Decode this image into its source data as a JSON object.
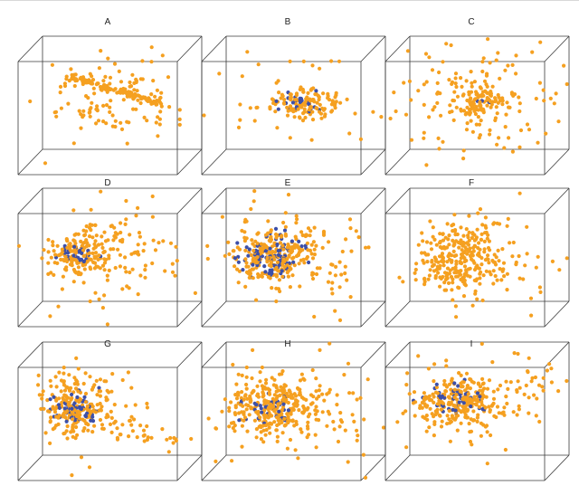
{
  "colors": {
    "orange": "#f5a020",
    "blue": "#3c4fa8",
    "edge": "#3a3a3a",
    "background": "#ffffff"
  },
  "chart_data": {
    "type": "scatter",
    "description": "3x3 grid of 3D scatter plots (point clouds in wireframe cubes), two series: orange and blue points",
    "panels": [
      {
        "label": "A",
        "row": 0,
        "col": 0,
        "clusters": [
          {
            "kind": "line",
            "from": [
              -0.55,
              0.55,
              -0.05
            ],
            "to": [
              0.6,
              0.05,
              0.0
            ],
            "n": 120,
            "spread": 0.03,
            "color": "orange"
          },
          {
            "kind": "blob",
            "center": [
              0.05,
              0.15,
              0.0
            ],
            "size": [
              0.45,
              0.35,
              0.45
            ],
            "n": 110,
            "color": "orange"
          }
        ]
      },
      {
        "label": "B",
        "row": 0,
        "col": 1,
        "clusters": [
          {
            "kind": "blob",
            "center": [
              0.15,
              0.05,
              -0.05
            ],
            "size": [
              0.25,
              0.12,
              0.1
            ],
            "n": 110,
            "color": "orange"
          },
          {
            "kind": "blob",
            "center": [
              0.1,
              0.05,
              -0.05
            ],
            "size": [
              0.15,
              0.08,
              0.08
            ],
            "n": 25,
            "color": "blue"
          },
          {
            "kind": "blob",
            "center": [
              0.0,
              0.1,
              0.1
            ],
            "size": [
              0.7,
              0.45,
              0.55
            ],
            "n": 45,
            "color": "orange"
          }
        ]
      },
      {
        "label": "C",
        "row": 0,
        "col": 2,
        "clusters": [
          {
            "kind": "blob",
            "center": [
              0.05,
              0.05,
              0.0
            ],
            "size": [
              0.2,
              0.15,
              0.2
            ],
            "n": 80,
            "color": "orange"
          },
          {
            "kind": "blob",
            "center": [
              0.0,
              0.1,
              0.0
            ],
            "size": [
              0.55,
              0.5,
              0.55
            ],
            "n": 140,
            "color": "orange"
          },
          {
            "kind": "blob",
            "center": [
              0.05,
              0.05,
              0.0
            ],
            "size": [
              0.05,
              0.05,
              0.05
            ],
            "n": 3,
            "color": "blue"
          }
        ]
      },
      {
        "label": "D",
        "row": 1,
        "col": 0,
        "clusters": [
          {
            "kind": "blob",
            "center": [
              -0.4,
              0.05,
              0.05
            ],
            "size": [
              0.2,
              0.18,
              0.2
            ],
            "n": 150,
            "color": "orange"
          },
          {
            "kind": "blob",
            "center": [
              -0.4,
              0.05,
              0.05
            ],
            "size": [
              0.13,
              0.1,
              0.12
            ],
            "n": 30,
            "color": "blue"
          },
          {
            "kind": "blob",
            "center": [
              0.05,
              0.05,
              0.0
            ],
            "size": [
              0.5,
              0.45,
              0.55
            ],
            "n": 110,
            "color": "orange"
          }
        ]
      },
      {
        "label": "E",
        "row": 1,
        "col": 1,
        "clusters": [
          {
            "kind": "blob",
            "center": [
              -0.25,
              0.0,
              0.05
            ],
            "size": [
              0.28,
              0.25,
              0.28
            ],
            "n": 220,
            "color": "orange"
          },
          {
            "kind": "blob",
            "center": [
              -0.25,
              0.0,
              0.05
            ],
            "size": [
              0.2,
              0.18,
              0.2
            ],
            "n": 90,
            "color": "blue"
          },
          {
            "kind": "blob",
            "center": [
              0.1,
              0.0,
              0.0
            ],
            "size": [
              0.55,
              0.5,
              0.55
            ],
            "n": 90,
            "color": "orange"
          }
        ]
      },
      {
        "label": "F",
        "row": 1,
        "col": 2,
        "clusters": [
          {
            "kind": "blob",
            "center": [
              -0.25,
              0.0,
              0.05
            ],
            "size": [
              0.25,
              0.3,
              0.25
            ],
            "n": 260,
            "color": "orange"
          },
          {
            "kind": "blob",
            "center": [
              0.2,
              -0.05,
              0.0
            ],
            "size": [
              0.45,
              0.45,
              0.5
            ],
            "n": 70,
            "color": "orange"
          }
        ]
      },
      {
        "label": "G",
        "row": 2,
        "col": 0,
        "clusters": [
          {
            "kind": "blob",
            "center": [
              -0.45,
              0.05,
              0.05
            ],
            "size": [
              0.2,
              0.28,
              0.2
            ],
            "n": 200,
            "color": "orange"
          },
          {
            "kind": "blob",
            "center": [
              -0.45,
              0.05,
              0.05
            ],
            "size": [
              0.12,
              0.15,
              0.12
            ],
            "n": 60,
            "color": "blue"
          },
          {
            "kind": "line",
            "from": [
              -0.2,
              -0.1,
              0.0
            ],
            "to": [
              1.0,
              -0.55,
              0.0
            ],
            "n": 30,
            "spread": 0.08,
            "color": "orange"
          },
          {
            "kind": "blob",
            "center": [
              0.0,
              0.0,
              0.0
            ],
            "size": [
              0.4,
              0.45,
              0.4
            ],
            "n": 40,
            "color": "orange"
          }
        ]
      },
      {
        "label": "H",
        "row": 2,
        "col": 1,
        "clusters": [
          {
            "kind": "blob",
            "center": [
              -0.3,
              0.1,
              0.05
            ],
            "size": [
              0.28,
              0.25,
              0.28
            ],
            "n": 260,
            "color": "orange"
          },
          {
            "kind": "blob",
            "center": [
              -0.3,
              0.05,
              0.05
            ],
            "size": [
              0.18,
              0.15,
              0.18
            ],
            "n": 35,
            "color": "blue"
          },
          {
            "kind": "blob",
            "center": [
              0.15,
              0.05,
              0.0
            ],
            "size": [
              0.55,
              0.5,
              0.55
            ],
            "n": 110,
            "color": "orange"
          }
        ]
      },
      {
        "label": "I",
        "row": 2,
        "col": 2,
        "clusters": [
          {
            "kind": "blob",
            "center": [
              -0.25,
              0.15,
              0.05
            ],
            "size": [
              0.28,
              0.2,
              0.25
            ],
            "n": 230,
            "color": "orange"
          },
          {
            "kind": "blob",
            "center": [
              -0.25,
              0.2,
              0.05
            ],
            "size": [
              0.2,
              0.15,
              0.2
            ],
            "n": 45,
            "color": "blue"
          },
          {
            "kind": "line",
            "from": [
              -0.1,
              0.2,
              0.0
            ],
            "to": [
              0.9,
              0.6,
              0.0
            ],
            "n": 25,
            "spread": 0.1,
            "color": "orange"
          },
          {
            "kind": "blob",
            "center": [
              0.15,
              0.05,
              0.0
            ],
            "size": [
              0.5,
              0.45,
              0.5
            ],
            "n": 60,
            "color": "orange"
          }
        ]
      }
    ]
  }
}
